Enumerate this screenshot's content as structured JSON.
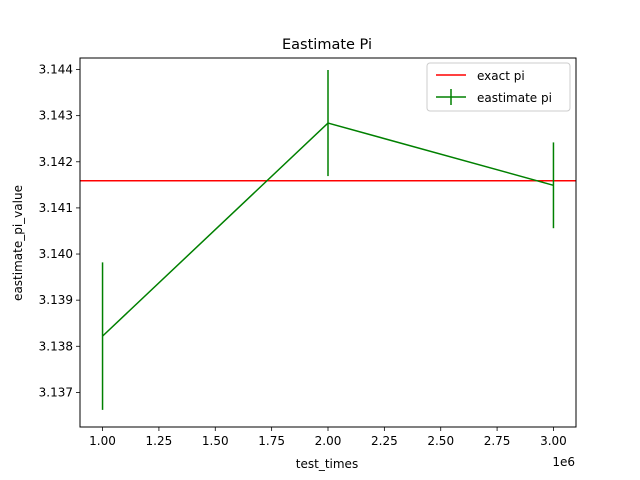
{
  "chart_data": {
    "type": "line",
    "title": "Eastimate Pi",
    "xlabel": "test_times",
    "ylabel": "eastimate_pi_value",
    "x_offset_label": "1e6",
    "xlim": [
      900000,
      3100000
    ],
    "ylim": [
      3.13625,
      3.14425
    ],
    "x_ticks": [
      1.0,
      1.25,
      1.5,
      1.75,
      2.0,
      2.25,
      2.5,
      2.75,
      3.0
    ],
    "x_tick_labels": [
      "1.00",
      "1.25",
      "1.50",
      "1.75",
      "2.00",
      "2.25",
      "2.50",
      "2.75",
      "3.00"
    ],
    "y_ticks": [
      3.137,
      3.138,
      3.139,
      3.14,
      3.141,
      3.142,
      3.143,
      3.144
    ],
    "y_tick_labels": [
      "3.137",
      "3.138",
      "3.139",
      "3.140",
      "3.141",
      "3.142",
      "3.143",
      "3.144"
    ],
    "grid": false,
    "legend_position": "top-right",
    "series": [
      {
        "name": "exact pi",
        "kind": "hline",
        "y": 3.14159,
        "color": "#ff0000"
      },
      {
        "name": "eastimate pi",
        "kind": "errorbar",
        "color": "#008000",
        "x": [
          1000000,
          2000000,
          3000000
        ],
        "y": [
          3.13822,
          3.14284,
          3.14149
        ],
        "yerr": [
          0.0016,
          0.00115,
          0.00093
        ]
      }
    ]
  }
}
